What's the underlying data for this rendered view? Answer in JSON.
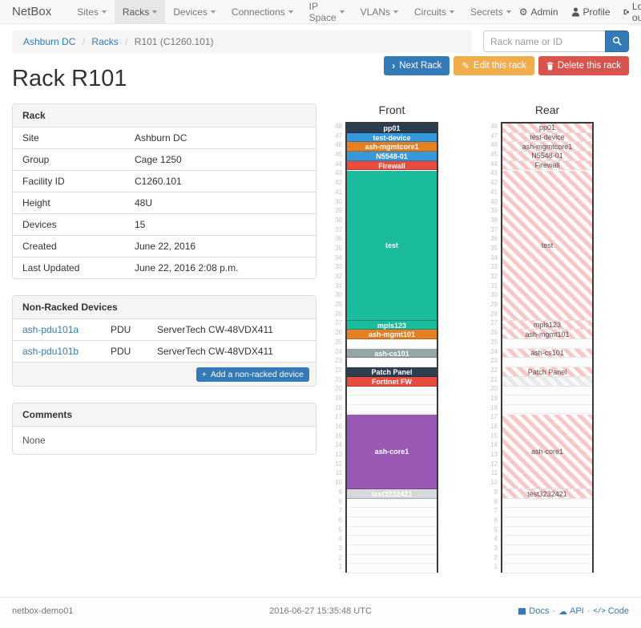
{
  "navbar": {
    "brand": "NetBox",
    "items": [
      {
        "label": "Sites"
      },
      {
        "label": "Racks"
      },
      {
        "label": "Devices"
      },
      {
        "label": "Connections"
      },
      {
        "label": "IP Space"
      },
      {
        "label": "VLANs"
      },
      {
        "label": "Circuits"
      },
      {
        "label": "Secrets"
      }
    ],
    "active_item": "Racks",
    "right": {
      "admin": "Admin",
      "profile": "Profile",
      "logout": "Log out"
    }
  },
  "breadcrumb": {
    "items": [
      "Ashburn DC",
      "Racks"
    ],
    "current": "R101 (C1260.101)"
  },
  "search": {
    "placeholder": "Rack name or ID"
  },
  "actions": {
    "next": "Next Rack",
    "edit": "Edit this rack",
    "delete": "Delete this rack"
  },
  "page_title": "Rack R101",
  "rack_panel": {
    "title": "Rack",
    "rows": [
      {
        "label": "Site",
        "value": "Ashburn DC",
        "link": true
      },
      {
        "label": "Group",
        "value": "Cage 1250",
        "link": true
      },
      {
        "label": "Facility ID",
        "value": "C1260.101",
        "link": false
      },
      {
        "label": "Height",
        "value": "48U",
        "link": false
      },
      {
        "label": "Devices",
        "value": "15",
        "link": true
      },
      {
        "label": "Created",
        "value": "June 22, 2016",
        "link": false
      },
      {
        "label": "Last Updated",
        "value": "June 22, 2016 2:08 p.m.",
        "link": false
      }
    ]
  },
  "nonracked_panel": {
    "title": "Non-Racked Devices",
    "rows": [
      {
        "name": "ash-pdu101a",
        "type": "PDU",
        "model": "ServerTech CW-48VDX411"
      },
      {
        "name": "ash-pdu101b",
        "type": "PDU",
        "model": "ServerTech CW-48VDX411"
      }
    ],
    "add_label": "Add a non-racked device"
  },
  "comments_panel": {
    "title": "Comments",
    "body": "None"
  },
  "elevation": {
    "units": 48,
    "front_title": "Front",
    "rear_title": "Rear",
    "stripe_pink": "#f9c5c5",
    "stripe_gray": "#e9e9e9",
    "devices": [
      {
        "name": "pp01",
        "top_u": 48,
        "u_height": 1,
        "color": "#2c3e50",
        "rear_style": "hatched"
      },
      {
        "name": "test-device",
        "top_u": 47,
        "u_height": 1,
        "color": "#3498db",
        "rear_style": "hatched"
      },
      {
        "name": "ash-mgmtcore1",
        "top_u": 46,
        "u_height": 1,
        "color": "#e67e22",
        "rear_style": "hatched"
      },
      {
        "name": "N5548-01",
        "top_u": 45,
        "u_height": 1,
        "color": "#3498db",
        "rear_style": "hatched"
      },
      {
        "name": "Firewall",
        "top_u": 44,
        "u_height": 1,
        "color": "#e74c3c",
        "rear_style": "hatched"
      },
      {
        "name": "test",
        "top_u": 43,
        "u_height": 16,
        "color": "#1abc9c",
        "rear_style": "hatched"
      },
      {
        "name": "mpls123",
        "top_u": 27,
        "u_height": 1,
        "color": "#1abc9c",
        "rear_style": "hatched"
      },
      {
        "name": "ash-mgmt101",
        "top_u": 26,
        "u_height": 1,
        "color": "#e67e22",
        "rear_style": "hatched"
      },
      {
        "name": "ash-cs101",
        "top_u": 24,
        "u_height": 1,
        "color": "#95a5a6",
        "rear_style": "hatched"
      },
      {
        "name": "Patch Panel",
        "top_u": 22,
        "u_height": 1,
        "color": "#2c3e50",
        "rear_style": "hatched"
      },
      {
        "name": "Fortinet FW",
        "top_u": 21,
        "u_height": 1,
        "color": "#e74c3c",
        "rear_style": "blocked"
      },
      {
        "name": "ash-core1",
        "top_u": 17,
        "u_height": 8,
        "color": "#9b59b6",
        "rear_style": "hatched"
      },
      {
        "name": "test3232421",
        "top_u": 9,
        "u_height": 1,
        "color": "#d5d9dc",
        "rear_style": "hatched"
      }
    ]
  },
  "footer": {
    "hostname": "netbox-demo01",
    "timestamp": "2016-06-27 15:35:48 UTC",
    "links": [
      {
        "label": "Docs",
        "icon": "book-icon"
      },
      {
        "label": "API",
        "icon": "cloud-icon"
      },
      {
        "label": "Code",
        "icon": "code-icon"
      }
    ]
  },
  "colors": {
    "accent": "#337ab7",
    "warning": "#f0ad4e",
    "danger": "#d9534f"
  }
}
